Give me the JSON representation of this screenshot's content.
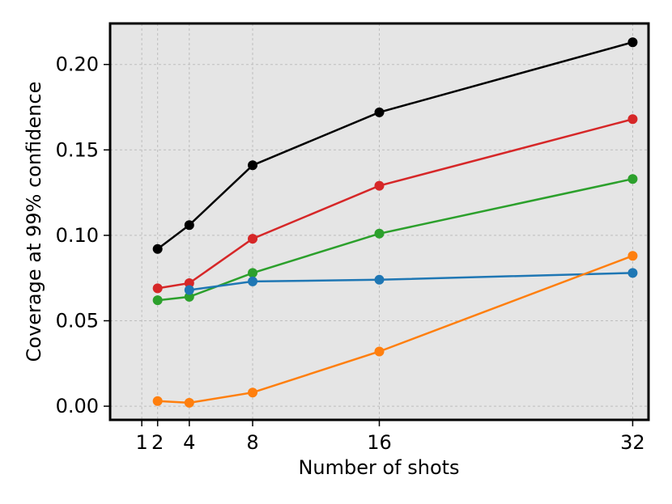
{
  "chart_data": {
    "type": "line",
    "xlabel": "Number of shots",
    "ylabel": "Coverage at 99% confidence",
    "xlim": [
      -1,
      33
    ],
    "ylim": [
      -0.008,
      0.224
    ],
    "xticks": [
      1,
      2,
      4,
      8,
      16,
      32
    ],
    "yticks": [
      0.0,
      0.05,
      0.1,
      0.15,
      0.2
    ],
    "ytick_labels": [
      "0.00",
      "0.05",
      "0.10",
      "0.15",
      "0.20"
    ],
    "grid": true,
    "background_color": "#e5e5e5",
    "series": [
      {
        "color": "#000000",
        "x": [
          2,
          4,
          8,
          16,
          32
        ],
        "y": [
          0.092,
          0.106,
          0.141,
          0.172,
          0.213
        ]
      },
      {
        "color": "#d62728",
        "x": [
          2,
          4,
          8,
          16,
          32
        ],
        "y": [
          0.069,
          0.072,
          0.098,
          0.129,
          0.168
        ]
      },
      {
        "color": "#2ca02c",
        "x": [
          2,
          4,
          8,
          16,
          32
        ],
        "y": [
          0.062,
          0.064,
          0.078,
          0.101,
          0.133
        ]
      },
      {
        "color": "#1f77b4",
        "x": [
          4,
          8,
          16,
          32
        ],
        "y": [
          0.068,
          0.073,
          0.074,
          0.078
        ]
      },
      {
        "color": "#ff7f0e",
        "x": [
          2,
          4,
          8,
          16,
          32
        ],
        "y": [
          0.003,
          0.002,
          0.008,
          0.032,
          0.088
        ]
      }
    ]
  }
}
